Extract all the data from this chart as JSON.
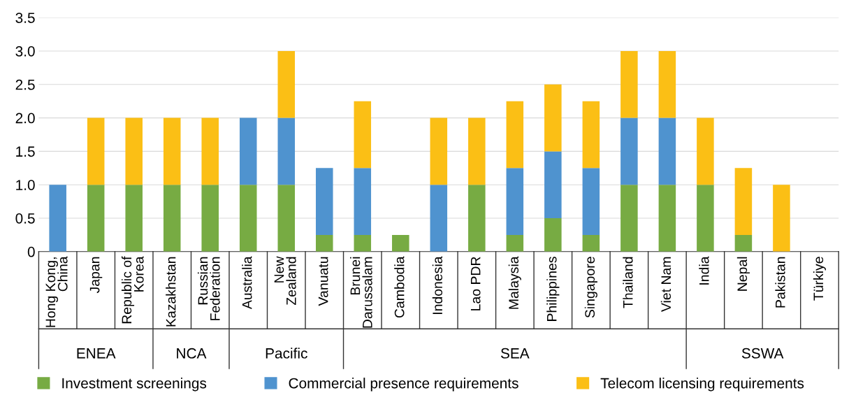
{
  "chart_data": {
    "type": "bar",
    "stacked": true,
    "categories": [
      "Hong Kong,\nChina",
      "Japan",
      "Republic of\nKorea",
      "Kazakhstan",
      "Russian\nFederation",
      "Australia",
      "New\nZealand",
      "Vanuatu",
      "Brunei\nDarussalam",
      "Cambodia",
      "Indonesia",
      "Lao PDR",
      "Malaysia",
      "Philippines",
      "Singapore",
      "Thailand",
      "Viet Nam",
      "India",
      "Nepal",
      "Pakistan",
      "Türkiye"
    ],
    "series": [
      {
        "name": "Investment screenings",
        "color": "#77ab43",
        "values": [
          0,
          1,
          1,
          1,
          1,
          1,
          1,
          0.25,
          0.25,
          0.25,
          0,
          1,
          0.25,
          0.5,
          0.25,
          1,
          1,
          1,
          0.25,
          0,
          0
        ]
      },
      {
        "name": "Commercial presence requirements",
        "color": "#4f93cf",
        "values": [
          1,
          0,
          0,
          0,
          0,
          1,
          1,
          1,
          1,
          0,
          1,
          0,
          1,
          1,
          1,
          1,
          1,
          0,
          0,
          0,
          0
        ]
      },
      {
        "name": "Telecom licensing requirements",
        "color": "#fbbf15",
        "values": [
          0,
          1,
          1,
          1,
          1,
          0,
          1,
          0,
          1,
          0,
          1,
          1,
          1,
          1,
          1,
          1,
          1,
          1,
          1,
          1,
          0
        ]
      }
    ],
    "annotations": [
      "ENEA",
      "NCA",
      "Pacific",
      "SEA",
      "SSWA"
    ],
    "ylim": [
      0,
      3.5
    ],
    "yticks": [
      0,
      {
        "value": 0.5,
        "label": "0.5"
      },
      {
        "value": 1,
        "label": "1.0"
      },
      {
        "value": 1.5,
        "label": "1.5"
      },
      {
        "value": 2,
        "label": "2.0"
      },
      {
        "value": 2.5,
        "label": "2.5"
      },
      {
        "value": 3,
        "label": "3.0"
      },
      {
        "value": 3.5,
        "label": "3.5"
      }
    ],
    "grid": "y",
    "legend": "bottom"
  }
}
